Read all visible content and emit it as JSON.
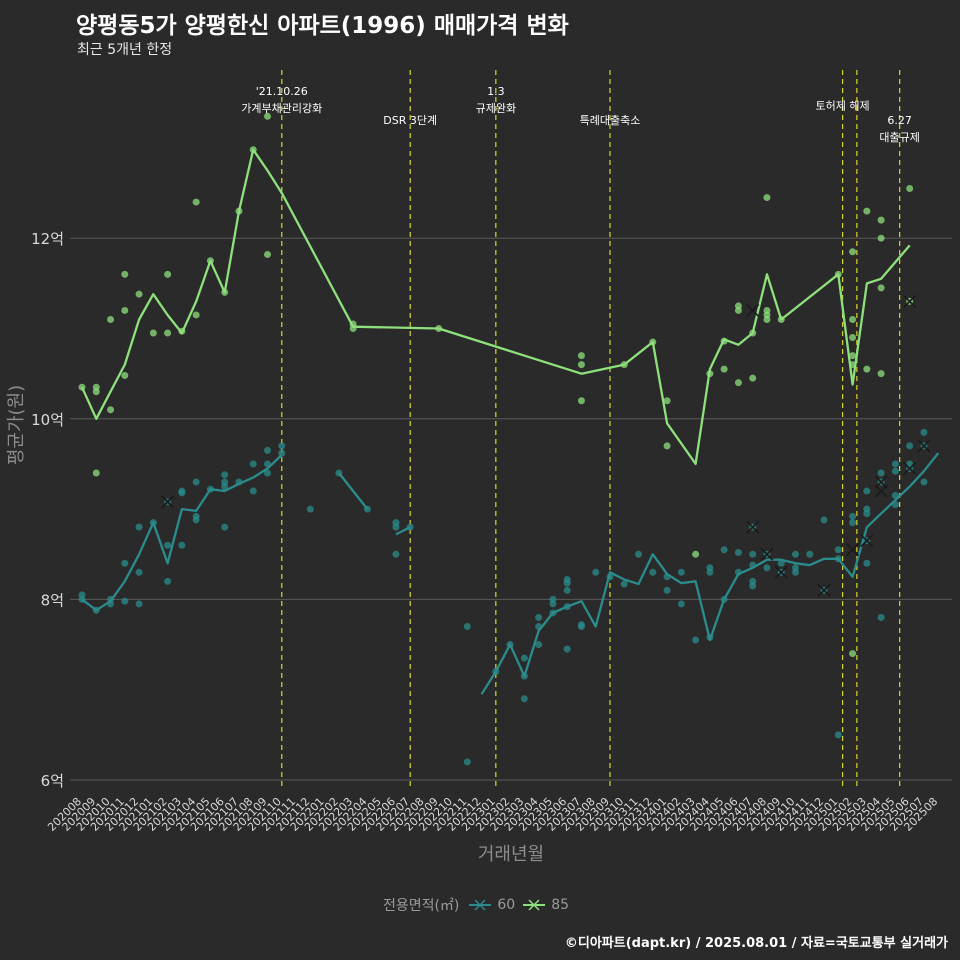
{
  "title": "양평동5가 양평한신 아파트(1996) 매매가격 변화",
  "subtitle": "최근 5개년 한정",
  "caption": "©디아파트(dapt.kr) / 2025.08.01 / 자료=국토교통부 실거래가",
  "colors": {
    "background": "#2b2a2a",
    "grid": "#5a5a5a",
    "series_60": "#2a8c8c",
    "series_85": "#8ee07c",
    "event_line": "#d6d62a",
    "axis_text": "#d9d9d9",
    "axis_title": "#8c8c8c"
  },
  "chart_data": {
    "type": "line",
    "xlabel": "거래년월",
    "ylabel": "평균가(원)",
    "categories": [
      "202008",
      "202009",
      "202010",
      "202011",
      "202012",
      "202101",
      "202102",
      "202103",
      "202104",
      "202105",
      "202106",
      "202107",
      "202108",
      "202109",
      "202110",
      "202111",
      "202112",
      "202201",
      "202202",
      "202203",
      "202204",
      "202205",
      "202206",
      "202207",
      "202208",
      "202209",
      "202210",
      "202211",
      "202212",
      "202301",
      "202302",
      "202303",
      "202304",
      "202305",
      "202306",
      "202307",
      "202308",
      "202309",
      "202310",
      "202311",
      "202312",
      "202401",
      "202402",
      "202403",
      "202404",
      "202405",
      "202406",
      "202407",
      "202408",
      "202409",
      "202410",
      "202411",
      "202412",
      "202501",
      "202502",
      "202503",
      "202504",
      "202505",
      "202506",
      "202507",
      "202508"
    ],
    "y_ticks": [
      6,
      8,
      10,
      12
    ],
    "y_tick_labels": [
      "6억",
      "8억",
      "10억",
      "12억"
    ],
    "ylim": [
      5.88,
      13.5
    ],
    "grid": true,
    "legend": {
      "title": "전용면적(㎡)",
      "position": "bottom",
      "entries": [
        "60",
        "85"
      ]
    },
    "series": [
      {
        "name": "60",
        "line": [
          [
            0,
            8.0
          ],
          [
            1,
            7.88
          ],
          [
            2,
            7.98
          ],
          [
            3,
            8.2
          ],
          [
            4,
            8.5
          ],
          [
            5,
            8.85
          ],
          [
            6,
            8.4
          ],
          [
            7,
            9.0
          ],
          [
            8,
            8.98
          ],
          [
            9,
            9.22
          ],
          [
            10,
            9.2
          ],
          [
            11,
            9.28
          ],
          [
            12,
            9.35
          ],
          [
            13,
            9.45
          ],
          [
            14,
            9.6
          ],
          null,
          [
            18,
            9.4
          ],
          [
            19,
            9.2
          ],
          [
            20,
            9.0
          ],
          null,
          [
            22,
            8.72
          ],
          [
            23,
            8.8
          ],
          null,
          [
            28,
            6.95
          ],
          [
            29,
            7.2
          ],
          [
            30,
            7.5
          ],
          [
            31,
            7.15
          ],
          [
            32,
            7.65
          ],
          [
            33,
            7.85
          ],
          [
            34,
            7.92
          ],
          [
            35,
            7.98
          ],
          [
            36,
            7.7
          ],
          [
            37,
            8.3
          ],
          [
            38,
            8.22
          ],
          [
            39,
            8.17
          ],
          [
            40,
            8.5
          ],
          [
            41,
            8.28
          ],
          [
            42,
            8.18
          ],
          [
            43,
            8.2
          ],
          [
            44,
            7.55
          ],
          [
            45,
            8.0
          ],
          [
            46,
            8.28
          ],
          [
            47,
            8.35
          ],
          [
            48,
            8.44
          ],
          [
            49,
            8.44
          ],
          [
            50,
            8.4
          ],
          [
            51,
            8.38
          ],
          [
            52,
            8.45
          ],
          [
            53,
            8.45
          ],
          [
            54,
            8.25
          ],
          [
            55,
            8.8
          ],
          [
            56,
            8.95
          ],
          [
            57,
            9.1
          ],
          [
            58,
            9.25
          ],
          [
            59,
            9.42
          ],
          [
            60,
            9.62
          ]
        ],
        "points": [
          [
            0,
            8.05
          ],
          [
            0,
            8.0
          ],
          [
            1,
            7.88
          ],
          [
            2,
            7.95
          ],
          [
            2,
            8.0
          ],
          [
            3,
            7.98
          ],
          [
            3,
            8.4
          ],
          [
            4,
            7.95
          ],
          [
            4,
            8.3
          ],
          [
            4,
            8.8
          ],
          [
            5,
            8.85
          ],
          [
            6,
            8.2
          ],
          [
            6,
            8.6
          ],
          [
            6,
            9.08
          ],
          [
            7,
            8.6
          ],
          [
            7,
            9.18
          ],
          [
            7,
            9.2
          ],
          [
            8,
            8.88
          ],
          [
            8,
            8.92
          ],
          [
            8,
            9.3
          ],
          [
            9,
            9.22
          ],
          [
            10,
            8.8
          ],
          [
            10,
            9.25
          ],
          [
            10,
            9.3
          ],
          [
            10,
            9.38
          ],
          [
            11,
            9.3
          ],
          [
            12,
            9.2
          ],
          [
            12,
            9.5
          ],
          [
            13,
            9.4
          ],
          [
            13,
            9.5
          ],
          [
            13,
            9.65
          ],
          [
            14,
            9.62
          ],
          [
            14,
            9.7
          ],
          [
            16,
            9.0
          ],
          [
            18,
            9.4
          ],
          [
            20,
            9.0
          ],
          [
            22,
            8.5
          ],
          [
            22,
            8.8
          ],
          [
            22,
            8.85
          ],
          [
            23,
            8.8
          ],
          [
            27,
            7.7
          ],
          [
            27,
            6.2
          ],
          [
            29,
            7.2
          ],
          [
            30,
            7.5
          ],
          [
            31,
            7.35
          ],
          [
            31,
            6.9
          ],
          [
            31,
            7.15
          ],
          [
            32,
            7.5
          ],
          [
            32,
            7.7
          ],
          [
            32,
            7.8
          ],
          [
            33,
            7.85
          ],
          [
            33,
            7.95
          ],
          [
            33,
            8.0
          ],
          [
            34,
            7.92
          ],
          [
            34,
            8.1
          ],
          [
            34,
            8.18
          ],
          [
            34,
            8.22
          ],
          [
            34,
            7.45
          ],
          [
            35,
            7.7
          ],
          [
            35,
            7.72
          ],
          [
            36,
            8.3
          ],
          [
            37,
            8.25
          ],
          [
            38,
            8.17
          ],
          [
            39,
            8.5
          ],
          [
            40,
            8.3
          ],
          [
            41,
            8.1
          ],
          [
            41,
            8.25
          ],
          [
            42,
            7.95
          ],
          [
            42,
            8.3
          ],
          [
            43,
            7.55
          ],
          [
            44,
            8.3
          ],
          [
            44,
            8.35
          ],
          [
            44,
            7.58
          ],
          [
            45,
            8.0
          ],
          [
            45,
            8.55
          ],
          [
            46,
            8.3
          ],
          [
            46,
            8.52
          ],
          [
            47,
            8.15
          ],
          [
            47,
            8.2
          ],
          [
            47,
            8.38
          ],
          [
            47,
            8.5
          ],
          [
            47,
            8.8
          ],
          [
            48,
            8.35
          ],
          [
            48,
            8.5
          ],
          [
            49,
            8.3
          ],
          [
            49,
            8.4
          ],
          [
            50,
            8.3
          ],
          [
            50,
            8.35
          ],
          [
            50,
            8.5
          ],
          [
            51,
            8.5
          ],
          [
            52,
            8.1
          ],
          [
            52,
            8.88
          ],
          [
            53,
            8.45
          ],
          [
            53,
            8.55
          ],
          [
            53,
            6.5
          ],
          [
            54,
            8.85
          ],
          [
            54,
            8.92
          ],
          [
            55,
            8.4
          ],
          [
            55,
            8.65
          ],
          [
            55,
            8.95
          ],
          [
            55,
            9.0
          ],
          [
            55,
            9.2
          ],
          [
            56,
            7.8
          ],
          [
            56,
            9.3
          ],
          [
            56,
            9.4
          ],
          [
            57,
            9.05
          ],
          [
            57,
            9.15
          ],
          [
            57,
            9.42
          ],
          [
            57,
            9.5
          ],
          [
            58,
            9.45
          ],
          [
            58,
            9.5
          ],
          [
            58,
            9.7
          ],
          [
            59,
            9.3
          ],
          [
            59,
            9.7
          ],
          [
            59,
            9.85
          ]
        ],
        "crosses": [
          [
            6,
            9.08
          ],
          [
            47,
            8.8
          ],
          [
            48,
            8.5
          ],
          [
            49,
            8.3
          ],
          [
            52,
            8.1
          ],
          [
            54,
            8.55
          ],
          [
            55,
            8.65
          ],
          [
            56,
            9.3
          ],
          [
            56,
            9.2
          ],
          [
            58,
            9.45
          ],
          [
            59,
            9.7
          ]
        ]
      },
      {
        "name": "85",
        "line": [
          [
            0,
            10.35
          ],
          [
            1,
            10.0
          ],
          [
            2,
            10.3
          ],
          [
            3,
            10.6
          ],
          [
            4,
            11.1
          ],
          [
            5,
            11.38
          ],
          [
            6,
            11.15
          ],
          [
            7,
            10.95
          ],
          [
            8,
            11.3
          ],
          [
            9,
            11.75
          ],
          [
            10,
            11.4
          ],
          [
            11,
            12.3
          ],
          [
            12,
            12.98
          ],
          [
            13,
            12.75
          ],
          [
            14,
            12.5
          ],
          [
            19,
            11.02
          ],
          [
            25,
            11.0
          ],
          [
            35,
            10.5
          ],
          [
            38,
            10.6
          ],
          [
            40,
            10.85
          ],
          [
            41,
            9.95
          ],
          [
            43,
            9.5
          ],
          [
            44,
            10.55
          ],
          [
            45,
            10.88
          ],
          [
            46,
            10.82
          ],
          [
            47,
            10.95
          ],
          [
            48,
            11.6
          ],
          [
            49,
            11.1
          ],
          [
            53,
            11.6
          ],
          [
            54,
            10.38
          ],
          [
            55,
            11.5
          ],
          [
            56,
            11.55
          ],
          [
            58,
            11.92
          ]
        ],
        "points": [
          [
            0,
            10.35
          ],
          [
            1,
            10.35
          ],
          [
            1,
            10.3
          ],
          [
            1,
            9.4
          ],
          [
            2,
            10.1
          ],
          [
            2,
            11.1
          ],
          [
            3,
            10.48
          ],
          [
            3,
            11.2
          ],
          [
            3,
            11.6
          ],
          [
            4,
            11.38
          ],
          [
            5,
            10.95
          ],
          [
            6,
            11.6
          ],
          [
            6,
            10.95
          ],
          [
            7,
            10.97
          ],
          [
            8,
            12.4
          ],
          [
            8,
            11.15
          ],
          [
            9,
            11.75
          ],
          [
            10,
            11.4
          ],
          [
            11,
            12.3
          ],
          [
            12,
            12.98
          ],
          [
            13,
            13.35
          ],
          [
            13,
            11.82
          ],
          [
            19,
            11.05
          ],
          [
            19,
            11.0
          ],
          [
            25,
            11.0
          ],
          [
            35,
            10.7
          ],
          [
            35,
            10.6
          ],
          [
            35,
            10.2
          ],
          [
            38,
            10.6
          ],
          [
            40,
            10.85
          ],
          [
            41,
            10.2
          ],
          [
            41,
            9.7
          ],
          [
            43,
            8.5
          ],
          [
            44,
            10.5
          ],
          [
            45,
            10.55
          ],
          [
            45,
            10.86
          ],
          [
            46,
            10.4
          ],
          [
            46,
            11.2
          ],
          [
            46,
            11.25
          ],
          [
            47,
            10.45
          ],
          [
            47,
            10.95
          ],
          [
            48,
            11.1
          ],
          [
            48,
            11.2
          ],
          [
            48,
            11.15
          ],
          [
            48,
            12.45
          ],
          [
            49,
            11.1
          ],
          [
            53,
            11.6
          ],
          [
            54,
            10.6
          ],
          [
            54,
            10.7
          ],
          [
            54,
            10.9
          ],
          [
            54,
            11.1
          ],
          [
            54,
            11.85
          ],
          [
            54,
            7.4
          ],
          [
            55,
            10.55
          ],
          [
            55,
            12.3
          ],
          [
            56,
            12.2
          ],
          [
            56,
            12.0
          ],
          [
            56,
            11.45
          ],
          [
            56,
            10.5
          ],
          [
            58,
            11.3
          ],
          [
            58,
            12.55
          ]
        ],
        "crosses": [
          [
            47,
            11.2
          ],
          [
            58,
            11.3
          ]
        ]
      }
    ],
    "events": [
      {
        "x": 14,
        "lines": [
          "'21.10.26",
          "가계부채관리강화"
        ],
        "row": 0
      },
      {
        "x": 23,
        "lines": [
          "DSR 3단계"
        ],
        "row": 1
      },
      {
        "x": 29,
        "lines": [
          "1.3",
          "규제완화"
        ],
        "row": 0
      },
      {
        "x": 37,
        "lines": [
          "특례대출축소"
        ],
        "row": 1
      },
      {
        "x": 53.3,
        "lines": [
          "토허제 해제"
        ],
        "row": 0.5
      },
      {
        "x": 54.3,
        "lines": [],
        "row": 0
      },
      {
        "x": 57.3,
        "lines": [
          "6.27",
          "대출규제"
        ],
        "row": 1
      }
    ]
  }
}
